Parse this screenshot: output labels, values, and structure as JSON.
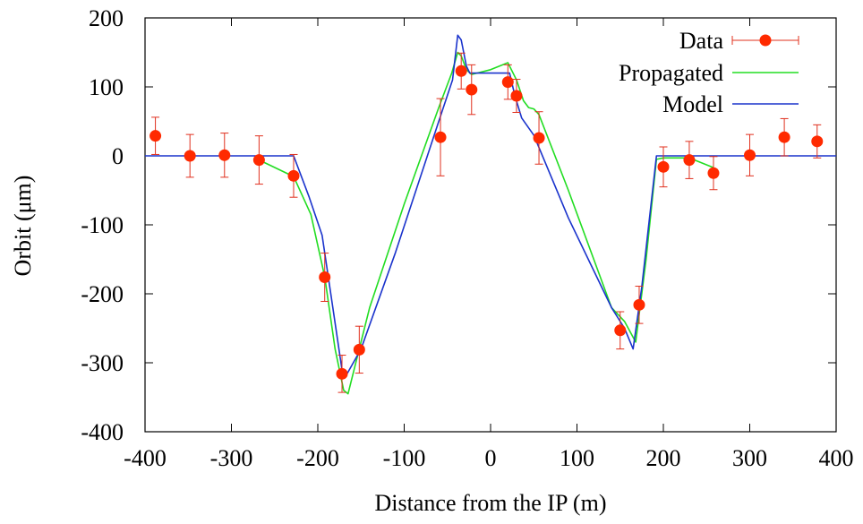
{
  "chart_data": {
    "type": "line",
    "xlabel": "Distance from the IP (m)",
    "ylabel": "Orbit (μm)",
    "xlim": [
      -400,
      400
    ],
    "ylim": [
      -400,
      200
    ],
    "x_ticks": [
      -400,
      -300,
      -200,
      -100,
      0,
      100,
      200,
      300,
      400
    ],
    "y_ticks": [
      200,
      100,
      0,
      -100,
      -200,
      -300,
      -400
    ],
    "grid": false,
    "legend_position": "top-right",
    "legend": [
      "Data",
      "Propagated",
      "Model"
    ],
    "colors": {
      "data": "#ff2a00",
      "errorbar": "#e0301e",
      "propagated": "#22dd22",
      "model": "#1a33cc",
      "axis": "#000000"
    },
    "series": [
      {
        "name": "Data",
        "kind": "points_with_errorbars",
        "points": [
          {
            "x": -388,
            "y": 29,
            "err": 27
          },
          {
            "x": -348,
            "y": 0,
            "err": 31
          },
          {
            "x": -308,
            "y": 1,
            "err": 32
          },
          {
            "x": -268,
            "y": -6,
            "err": 35
          },
          {
            "x": -228,
            "y": -29,
            "err": 31
          },
          {
            "x": -192,
            "y": -176,
            "err": 35
          },
          {
            "x": -172,
            "y": -316,
            "err": 27
          },
          {
            "x": -152,
            "y": -281,
            "err": 34
          },
          {
            "x": -58,
            "y": 27,
            "err": 56
          },
          {
            "x": -34,
            "y": 123,
            "err": 26
          },
          {
            "x": -22,
            "y": 96,
            "err": 36
          },
          {
            "x": 20,
            "y": 107,
            "err": 25
          },
          {
            "x": 30,
            "y": 87,
            "err": 24
          },
          {
            "x": 56,
            "y": 26,
            "err": 38
          },
          {
            "x": 150,
            "y": -253,
            "err": 27
          },
          {
            "x": 172,
            "y": -216,
            "err": 27
          },
          {
            "x": 200,
            "y": -16,
            "err": 29
          },
          {
            "x": 230,
            "y": -6,
            "err": 27
          },
          {
            "x": 258,
            "y": -25,
            "err": 24
          },
          {
            "x": 300,
            "y": 1,
            "err": 30
          },
          {
            "x": 340,
            "y": 27,
            "err": 27
          },
          {
            "x": 378,
            "y": 21,
            "err": 24
          }
        ]
      },
      {
        "name": "Propagated",
        "kind": "line",
        "points": [
          [
            -268,
            -6
          ],
          [
            -228,
            -30
          ],
          [
            -208,
            -85
          ],
          [
            -192,
            -175
          ],
          [
            -180,
            -280
          ],
          [
            -170,
            -340
          ],
          [
            -165,
            -345
          ],
          [
            -152,
            -280
          ],
          [
            -140,
            -220
          ],
          [
            -100,
            -70
          ],
          [
            -60,
            70
          ],
          [
            -45,
            120
          ],
          [
            -38,
            150
          ],
          [
            -34,
            145
          ],
          [
            -28,
            125
          ],
          [
            -22,
            118
          ],
          [
            0,
            125
          ],
          [
            20,
            135
          ],
          [
            30,
            110
          ],
          [
            38,
            80
          ],
          [
            44,
            70
          ],
          [
            50,
            68
          ],
          [
            56,
            60
          ],
          [
            90,
            -50
          ],
          [
            140,
            -220
          ],
          [
            155,
            -240
          ],
          [
            168,
            -270
          ],
          [
            180,
            -150
          ],
          [
            192,
            -5
          ],
          [
            200,
            -3
          ],
          [
            230,
            -3
          ],
          [
            258,
            -17
          ]
        ]
      },
      {
        "name": "Model",
        "kind": "line",
        "points": [
          [
            -400,
            0
          ],
          [
            -228,
            0
          ],
          [
            -210,
            -60
          ],
          [
            -195,
            -115
          ],
          [
            -185,
            -200
          ],
          [
            -172,
            -310
          ],
          [
            -167,
            -318
          ],
          [
            -150,
            -280
          ],
          [
            -110,
            -140
          ],
          [
            -60,
            50
          ],
          [
            -44,
            110
          ],
          [
            -38,
            175
          ],
          [
            -34,
            168
          ],
          [
            -28,
            130
          ],
          [
            -24,
            120
          ],
          [
            22,
            120
          ],
          [
            28,
            88
          ],
          [
            36,
            55
          ],
          [
            50,
            30
          ],
          [
            90,
            -90
          ],
          [
            140,
            -220
          ],
          [
            155,
            -250
          ],
          [
            165,
            -280
          ],
          [
            175,
            -190
          ],
          [
            192,
            0
          ],
          [
            400,
            0
          ]
        ]
      }
    ]
  }
}
